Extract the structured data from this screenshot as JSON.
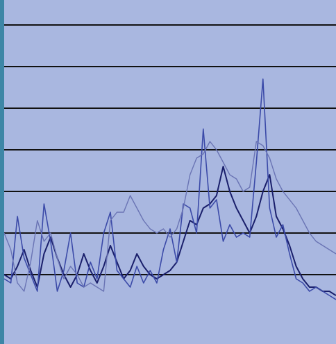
{
  "chart_data": {
    "type": "line",
    "title": "",
    "xlabel": "",
    "ylabel": "",
    "grid": true,
    "legend": "none",
    "tick_labels_visible": false,
    "colors": {
      "plot_background": "#A9B7E0",
      "gridline": "#111111",
      "left_edge_image": "#3E86A6",
      "series_dark": "#1A1F6B",
      "series_medium": "#3B4AA8",
      "series_light": "#6A74B4"
    },
    "xlim": [
      0,
      200
    ],
    "ylim": [
      0,
      7
    ],
    "x": [
      0,
      4,
      8,
      12,
      16,
      20,
      24,
      28,
      32,
      36,
      40,
      44,
      48,
      52,
      56,
      60,
      64,
      68,
      72,
      76,
      80,
      84,
      88,
      92,
      96,
      100,
      104,
      108,
      112,
      116,
      120,
      124,
      128,
      132,
      136,
      140,
      144,
      148,
      152,
      156,
      160,
      164,
      168,
      172,
      176,
      180,
      184,
      188,
      192,
      196,
      200
    ],
    "series": [
      {
        "color_key": "series_dark",
        "values": [
          1.0,
          0.9,
          1.2,
          1.6,
          1.1,
          0.7,
          1.5,
          1.9,
          1.4,
          1.0,
          0.7,
          1.0,
          1.5,
          1.1,
          0.8,
          1.2,
          1.7,
          1.3,
          0.9,
          1.1,
          1.5,
          1.2,
          1.0,
          0.9,
          1.0,
          1.1,
          1.3,
          1.8,
          2.3,
          2.2,
          2.6,
          2.7,
          2.9,
          3.6,
          3.0,
          2.6,
          2.3,
          2.0,
          2.4,
          3.0,
          3.4,
          2.4,
          2.1,
          1.7,
          1.2,
          0.9,
          0.7,
          0.7,
          0.6,
          0.6,
          0.5
        ]
      },
      {
        "color_key": "series_medium",
        "values": [
          0.9,
          0.8,
          2.4,
          1.4,
          1.0,
          0.6,
          2.7,
          1.8,
          0.6,
          1.1,
          2.0,
          0.8,
          0.7,
          1.3,
          0.9,
          2.0,
          2.5,
          1.1,
          0.9,
          0.7,
          1.2,
          0.8,
          1.1,
          0.8,
          1.6,
          2.1,
          1.3,
          2.7,
          2.6,
          2.0,
          4.5,
          2.6,
          2.8,
          1.8,
          2.2,
          1.9,
          2.0,
          1.9,
          3.7,
          5.7,
          2.6,
          1.9,
          2.2,
          1.5,
          0.9,
          0.8,
          0.6,
          0.7,
          0.6,
          0.5,
          0.4
        ]
      },
      {
        "color_key": "series_light",
        "values": [
          2.0,
          1.6,
          0.8,
          0.6,
          1.3,
          2.3,
          1.8,
          2.0,
          1.4,
          0.9,
          1.2,
          1.0,
          0.7,
          0.8,
          0.7,
          0.6,
          2.3,
          2.5,
          2.5,
          2.9,
          2.6,
          2.3,
          2.1,
          2.0,
          2.1,
          1.9,
          2.1,
          2.6,
          3.4,
          3.8,
          3.9,
          4.2,
          4.0,
          3.7,
          3.4,
          3.3,
          3.0,
          3.1,
          4.2,
          4.1,
          3.8,
          3.3,
          3.0,
          2.8,
          2.6,
          2.3,
          2.0,
          1.8,
          1.7,
          1.6,
          1.5
        ]
      }
    ]
  }
}
